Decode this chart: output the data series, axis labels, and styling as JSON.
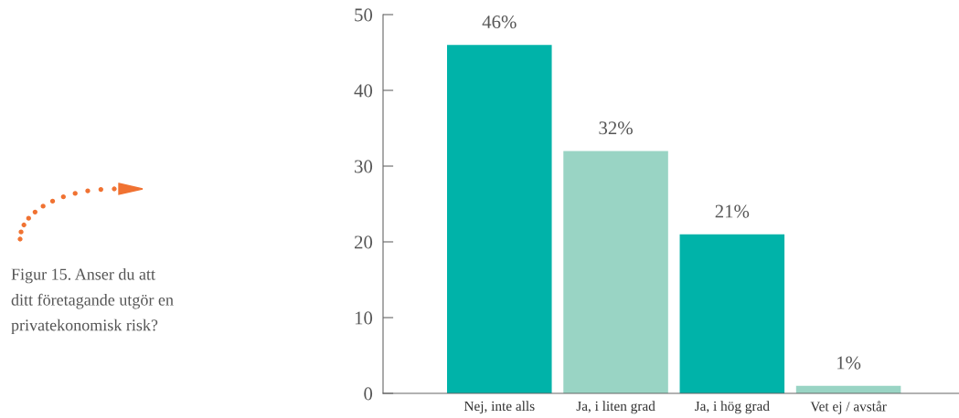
{
  "chart_data": {
    "type": "bar",
    "categories": [
      "Nej, inte alls",
      "Ja, i liten grad",
      "Ja, i hög grad",
      "Vet ej / avstår"
    ],
    "values": [
      46,
      32,
      21,
      1
    ],
    "colors": [
      "#00b3a9",
      "#99d4c4",
      "#00b3a9",
      "#99d4c4"
    ],
    "value_labels": [
      "46%",
      "32%",
      "21%",
      "1%"
    ],
    "ylim": [
      0,
      50
    ],
    "yticks": [
      0,
      10,
      20,
      30,
      40,
      50
    ],
    "grid": false,
    "legend": false,
    "annotations": [
      "Figur 15. Anser du att\nditt företagande utgör en\nprivatekonomisk risk?"
    ]
  }
}
